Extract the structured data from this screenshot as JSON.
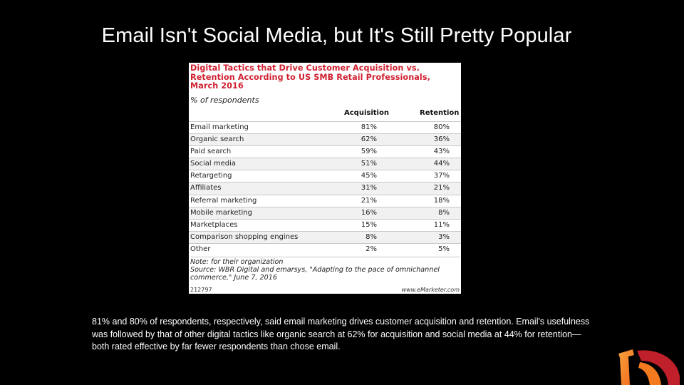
{
  "slide": {
    "title": "Email Isn't Social Media, but It's Still Pretty Popular",
    "caption": "81% and 80% of respondents, respectively, said email marketing drives customer acquisition and retention. Email's usefulness was followed by that of other digital tactics like organic search at 62% for acquisition and social media at 44% for retention—both rated effective by far fewer respondents than chose email."
  },
  "table": {
    "title": "Digital Tactics that Drive Customer Acquisition vs. Retention According to US SMB Retail Professionals, March 2016",
    "subtitle": "% of respondents",
    "col_acquisition": "Acquisition",
    "col_retention": "Retention",
    "rows": [
      {
        "label": "Email marketing",
        "acquisition": "81%",
        "retention": "80%"
      },
      {
        "label": "Organic search",
        "acquisition": "62%",
        "retention": "36%"
      },
      {
        "label": "Paid search",
        "acquisition": "59%",
        "retention": "43%"
      },
      {
        "label": "Social media",
        "acquisition": "51%",
        "retention": "44%"
      },
      {
        "label": "Retargeting",
        "acquisition": "45%",
        "retention": "37%"
      },
      {
        "label": "Affiliates",
        "acquisition": "31%",
        "retention": "21%"
      },
      {
        "label": "Referral marketing",
        "acquisition": "21%",
        "retention": "18%"
      },
      {
        "label": "Mobile marketing",
        "acquisition": "16%",
        "retention": "8%"
      },
      {
        "label": "Marketplaces",
        "acquisition": "15%",
        "retention": "11%"
      },
      {
        "label": "Comparison shopping engines",
        "acquisition": "8%",
        "retention": "3%"
      },
      {
        "label": "Other",
        "acquisition": "2%",
        "retention": "5%"
      }
    ],
    "note": "Note: for their organization",
    "source": "Source: WBR Digital and emarsys, \"Adapting to the pace of omnichannel commerce,\" June 7, 2016",
    "chart_id": "212797",
    "brand": "www.eMarketer.com"
  },
  "colors": {
    "background": "#000000",
    "table_title": "#d0202f",
    "logo_orange": "#f47a20",
    "logo_red": "#c0202a"
  }
}
